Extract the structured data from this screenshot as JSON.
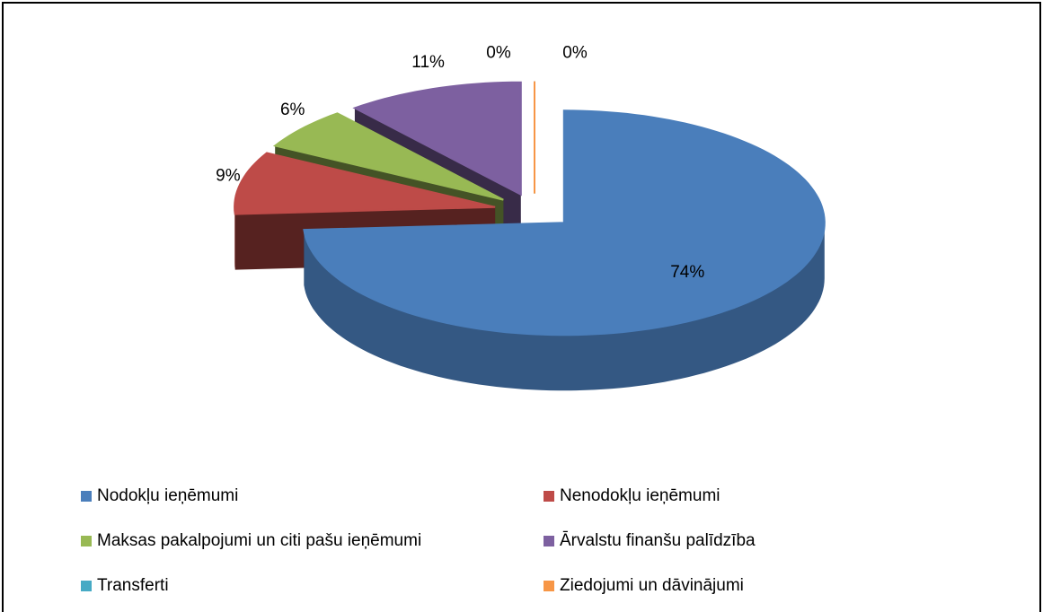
{
  "chart_data": {
    "type": "pie",
    "categories": [
      "Nodokļu ieņēmumi",
      "Nenodokļu ieņēmumi",
      "Maksas pakalpojumi un citi pašu ieņēmumi",
      "Ārvalstu finanšu palīdzība",
      "Transferti",
      "Ziedojumi un dāvinājumi"
    ],
    "values": [
      74,
      9,
      6,
      11,
      0,
      0
    ],
    "value_labels": [
      "74%",
      "9%",
      "6%",
      "11%",
      "0%",
      "0%"
    ],
    "colors": [
      "#4a7ebb",
      "#be4b48",
      "#98b954",
      "#7d60a0",
      "#46aac5",
      "#f79646"
    ],
    "legend": "bottom"
  }
}
